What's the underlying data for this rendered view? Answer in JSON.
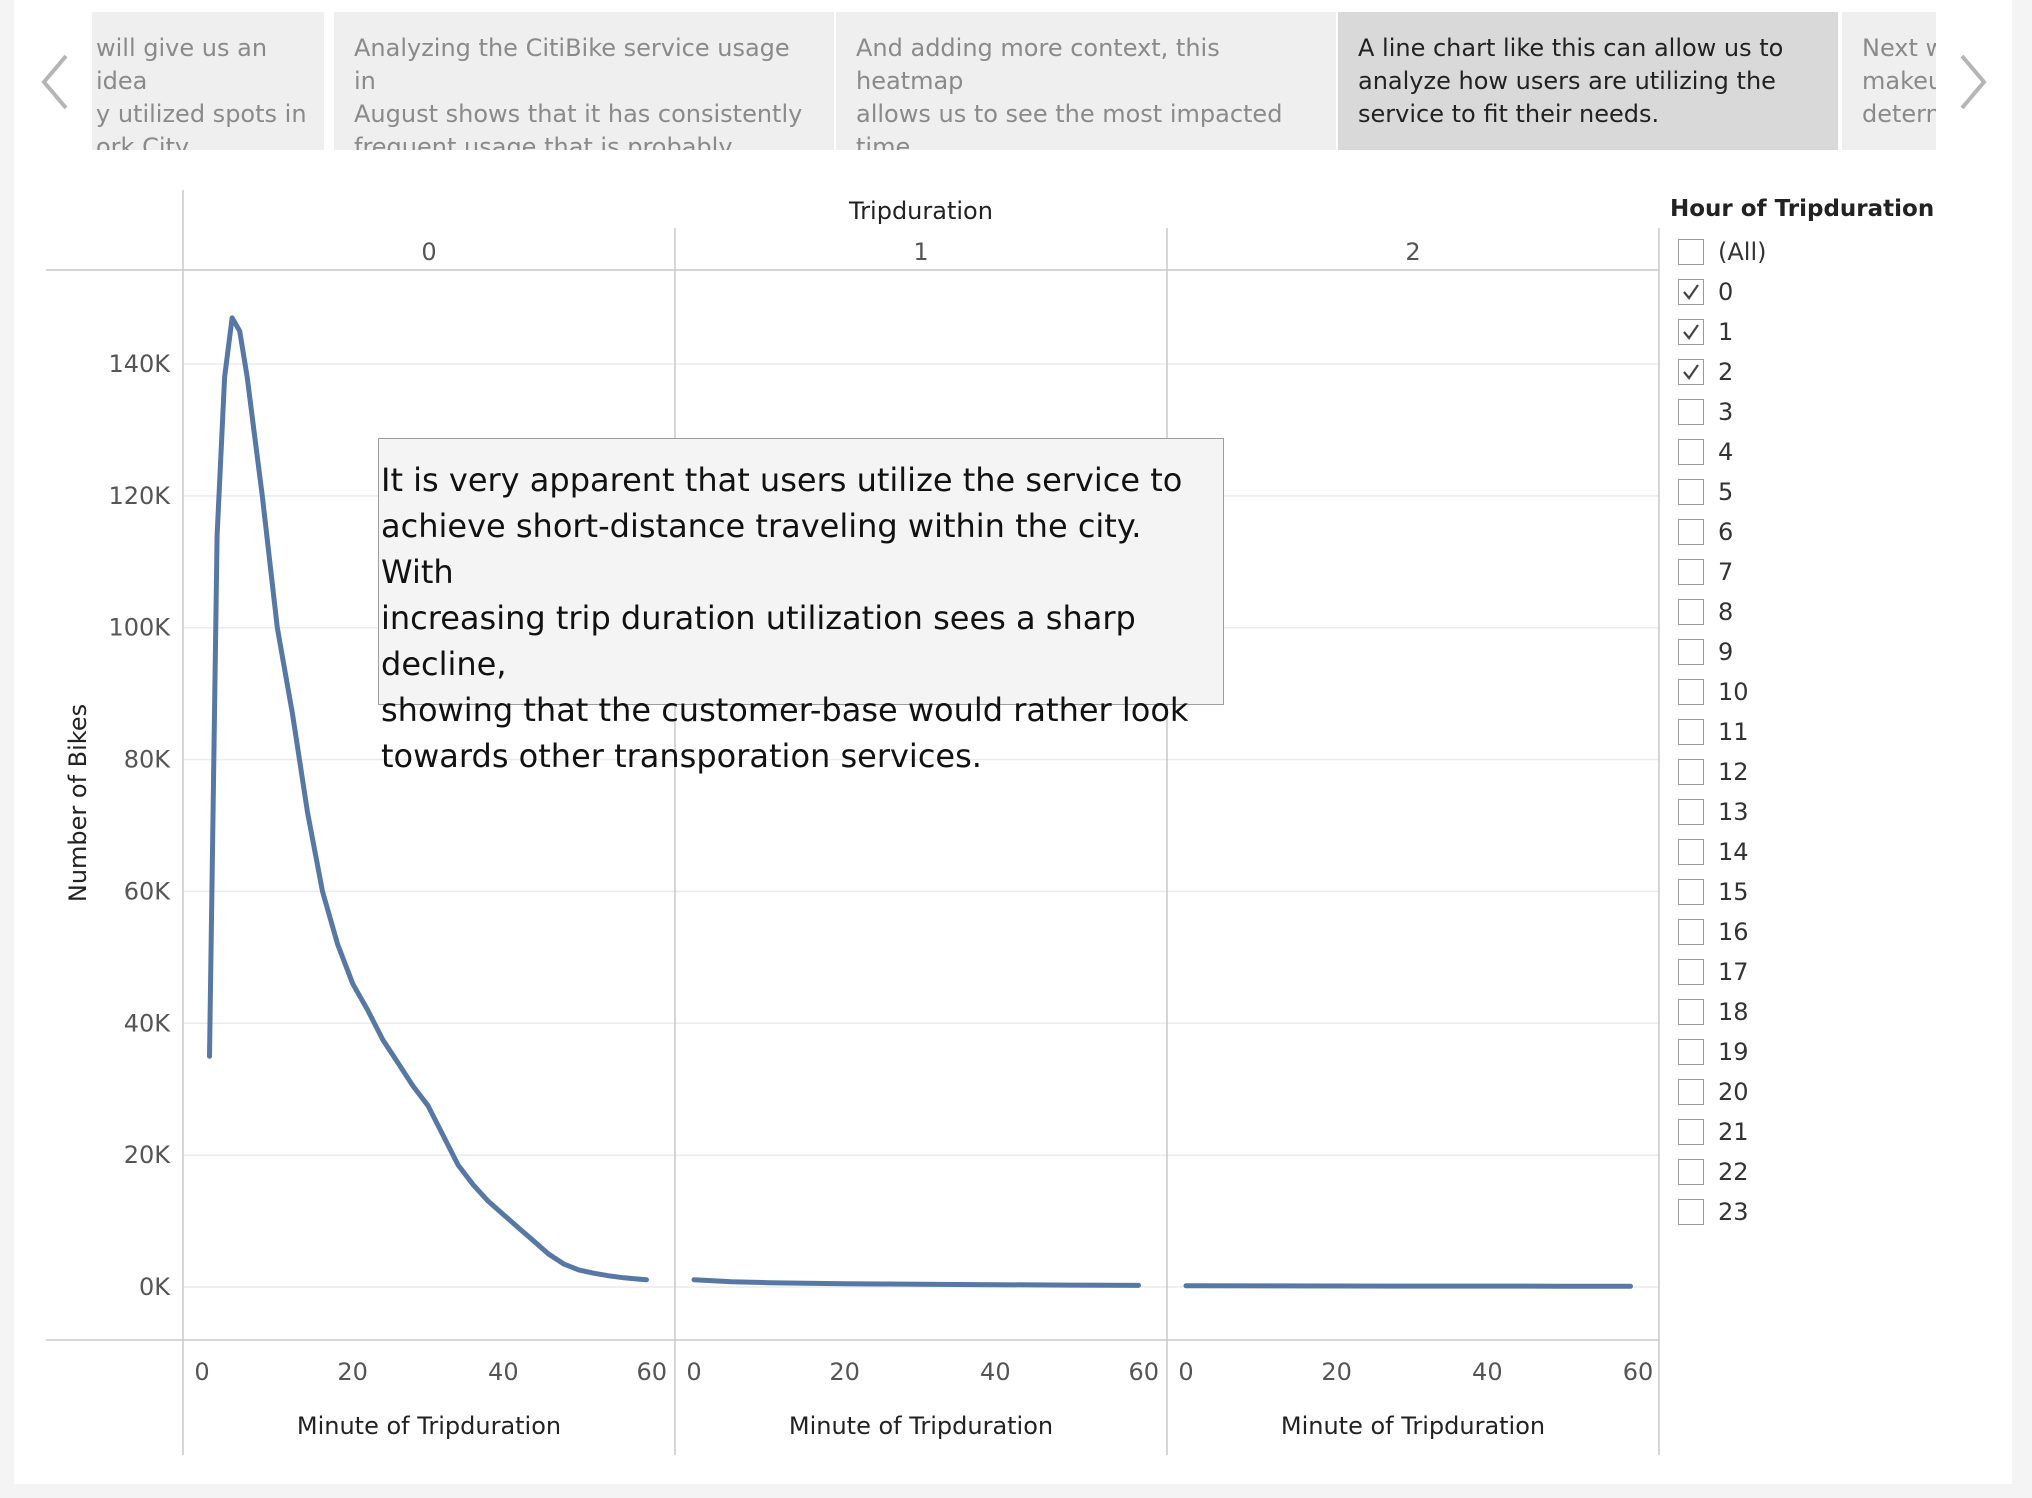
{
  "navigator": {
    "prev_icon": "chevron-left-icon",
    "next_icon": "chevron-right-icon",
    "story_points": [
      {
        "text": "will give us an idea\ny utilized spots in\nork City.",
        "active": false
      },
      {
        "text": "Analyzing the CitiBike service usage in\nAugust  shows that it has consistently\nfrequent usage that is probably shared",
        "active": false
      },
      {
        "text": "And adding more context, this heatmap\nallows us to see the most impacted time\nframe CitiBike users utilize the service.",
        "active": false
      },
      {
        "text": "A line chart like this can allow us to\nanalyze how users are utilizing the\nservice to fit their needs.",
        "active": true
      },
      {
        "text": "Next w\nmakeu\ndetern",
        "active": false
      }
    ]
  },
  "chart_data": {
    "type": "line",
    "column_header_title": "Tripduration",
    "panels": [
      "0",
      "1",
      "2"
    ],
    "ylabel": "Number of Bikes",
    "xlabel": "Minute of Tripduration",
    "ylim": [
      0,
      150000
    ],
    "yticks": [
      0,
      20000,
      40000,
      60000,
      80000,
      100000,
      120000,
      140000
    ],
    "ytick_labels": [
      "0K",
      "20K",
      "40K",
      "60K",
      "80K",
      "100K",
      "120K",
      "140K"
    ],
    "xlim": [
      0,
      60
    ],
    "xticks": [
      0,
      20,
      40,
      60
    ],
    "grid": "horizontal",
    "color": "#5778a4",
    "series": [
      {
        "panel": "0",
        "x": [
          1,
          2,
          3,
          4,
          5,
          6,
          7,
          8,
          10,
          12,
          14,
          16,
          18,
          20,
          22,
          24,
          26,
          28,
          30,
          32,
          34,
          36,
          38,
          40,
          42,
          44,
          46,
          48,
          50,
          52,
          54,
          56,
          58,
          59
        ],
        "values": [
          35000,
          114000,
          138000,
          147000,
          145000,
          138000,
          129000,
          120000,
          100000,
          87000,
          72000,
          60000,
          52000,
          46000,
          42000,
          37500,
          34000,
          30500,
          27500,
          23000,
          18500,
          15500,
          13000,
          11000,
          9000,
          7000,
          5000,
          3500,
          2600,
          2100,
          1700,
          1400,
          1200,
          1100
        ]
      },
      {
        "panel": "1",
        "x": [
          0,
          5,
          10,
          15,
          20,
          25,
          30,
          35,
          40,
          45,
          50,
          55,
          59
        ],
        "values": [
          1100,
          800,
          650,
          560,
          500,
          450,
          410,
          380,
          350,
          320,
          290,
          260,
          240
        ]
      },
      {
        "panel": "2",
        "x": [
          0,
          10,
          20,
          30,
          40,
          50,
          59
        ],
        "values": [
          180,
          160,
          150,
          140,
          130,
          120,
          110
        ]
      }
    ]
  },
  "annotation": {
    "text": "It  is very apparent that users utilize the service to\nachieve short-distance traveling within the city. With\nincreasing trip duration utilization sees a sharp decline,\nshowing that the customer-base would rather look\ntowards other transporation services."
  },
  "filter": {
    "title": "Hour of Tripduration",
    "checked_icon": "checkmark-icon",
    "items": [
      {
        "label": "(All)",
        "checked": false
      },
      {
        "label": "0",
        "checked": true
      },
      {
        "label": "1",
        "checked": true
      },
      {
        "label": "2",
        "checked": true
      },
      {
        "label": "3",
        "checked": false
      },
      {
        "label": "4",
        "checked": false
      },
      {
        "label": "5",
        "checked": false
      },
      {
        "label": "6",
        "checked": false
      },
      {
        "label": "7",
        "checked": false
      },
      {
        "label": "8",
        "checked": false
      },
      {
        "label": "9",
        "checked": false
      },
      {
        "label": "10",
        "checked": false
      },
      {
        "label": "11",
        "checked": false
      },
      {
        "label": "12",
        "checked": false
      },
      {
        "label": "13",
        "checked": false
      },
      {
        "label": "14",
        "checked": false
      },
      {
        "label": "15",
        "checked": false
      },
      {
        "label": "16",
        "checked": false
      },
      {
        "label": "17",
        "checked": false
      },
      {
        "label": "18",
        "checked": false
      },
      {
        "label": "19",
        "checked": false
      },
      {
        "label": "20",
        "checked": false
      },
      {
        "label": "21",
        "checked": false
      },
      {
        "label": "22",
        "checked": false
      },
      {
        "label": "23",
        "checked": false
      }
    ]
  }
}
